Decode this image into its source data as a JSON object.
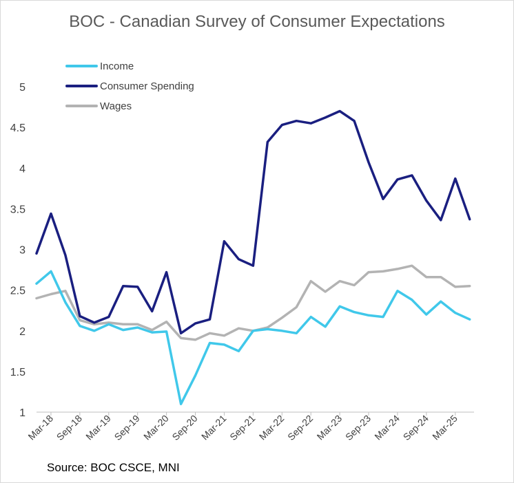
{
  "chart_data": {
    "type": "line",
    "title": "BOC - Canadian Survey of Consumer Expectations",
    "source": "Source: BOC CSCE, MNI",
    "xlabel": "",
    "ylabel": "",
    "ylim": [
      1,
      5
    ],
    "yticks": [
      "1",
      "1.5",
      "2",
      "2.5",
      "3",
      "3.5",
      "4",
      "4.5",
      "5"
    ],
    "xtick_labels": [
      "Mar-18",
      "Sep-18",
      "Mar-19",
      "Sep-19",
      "Mar-20",
      "Sep-20",
      "Mar-21",
      "Sep-21",
      "Mar-22",
      "Sep-22",
      "Mar-23",
      "Sep-23",
      "Mar-24",
      "Sep-24",
      "Mar-25"
    ],
    "x": [
      "Q4-17",
      "Q1-18",
      "Q2-18",
      "Q3-18",
      "Q4-18",
      "Q1-19",
      "Q2-19",
      "Q3-19",
      "Q4-19",
      "Q1-20",
      "Q2-20",
      "Q3-20",
      "Q4-20",
      "Q1-21",
      "Q2-21",
      "Q3-21",
      "Q4-21",
      "Q1-22",
      "Q2-22",
      "Q3-22",
      "Q4-22",
      "Q1-23",
      "Q2-23",
      "Q3-23",
      "Q4-23",
      "Q1-24",
      "Q2-24",
      "Q3-24",
      "Q4-24",
      "Q1-25",
      "Q2-25"
    ],
    "legend_position": "top-left",
    "series": [
      {
        "name": "Income",
        "color": "#40c8ea",
        "values": [
          2.58,
          2.73,
          2.35,
          2.06,
          2.0,
          2.08,
          2.01,
          2.04,
          1.98,
          1.99,
          1.1,
          1.45,
          1.85,
          1.83,
          1.75,
          2.0,
          2.02,
          2.0,
          1.97,
          2.17,
          2.05,
          2.3,
          2.23,
          2.19,
          2.17,
          2.49,
          2.38,
          2.2,
          2.36,
          2.22,
          2.14
        ]
      },
      {
        "name": "Consumer Spending",
        "color": "#1a1f80",
        "values": [
          2.95,
          3.44,
          2.93,
          2.18,
          2.1,
          2.17,
          2.55,
          2.54,
          2.24,
          2.72,
          1.97,
          2.09,
          2.14,
          3.1,
          2.88,
          2.8,
          4.32,
          4.53,
          4.58,
          4.55,
          4.62,
          4.7,
          4.58,
          4.07,
          3.62,
          3.86,
          3.91,
          3.6,
          3.36,
          3.87,
          3.37
        ]
      },
      {
        "name": "Wages",
        "color": "#b3b3b3",
        "values": [
          2.4,
          2.45,
          2.49,
          2.13,
          2.08,
          2.1,
          2.08,
          2.08,
          2.01,
          2.11,
          1.91,
          1.89,
          1.97,
          1.94,
          2.03,
          2.0,
          2.04,
          2.16,
          2.29,
          2.61,
          2.48,
          2.61,
          2.56,
          2.72,
          2.73,
          2.76,
          2.8,
          2.66,
          2.66,
          2.54,
          2.55
        ]
      }
    ]
  }
}
